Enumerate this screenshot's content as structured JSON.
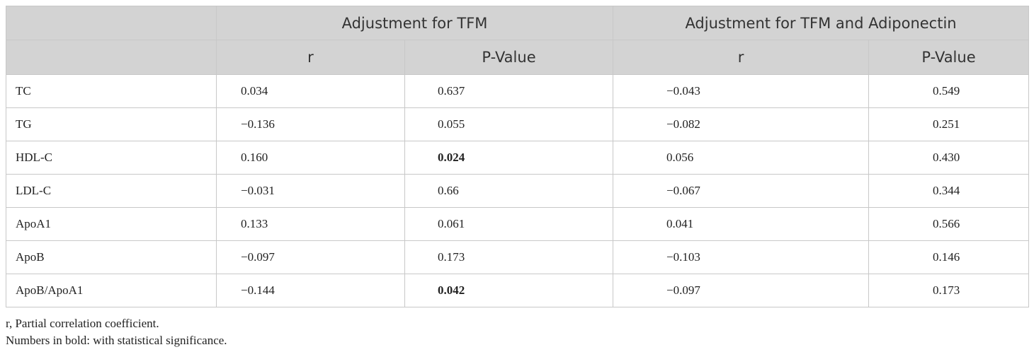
{
  "table": {
    "group_headers": [
      "Adjustment for TFM",
      "Adjustment for TFM and Adiponectin"
    ],
    "sub_headers": [
      "r",
      "P-Value",
      "r",
      "P-Value"
    ],
    "rows": [
      {
        "label": "TC",
        "r1": "0.034",
        "p1": "0.637",
        "r2": "−0.043",
        "p2": "0.549",
        "p1_bold": false
      },
      {
        "label": "TG",
        "r1": "−0.136",
        "p1": "0.055",
        "r2": "−0.082",
        "p2": "0.251",
        "p1_bold": false
      },
      {
        "label": "HDL-C",
        "r1": "0.160",
        "p1": "0.024",
        "r2": "0.056",
        "p2": "0.430",
        "p1_bold": true
      },
      {
        "label": "LDL-C",
        "r1": "−0.031",
        "p1": "0.66",
        "r2": "−0.067",
        "p2": "0.344",
        "p1_bold": false
      },
      {
        "label": "ApoA1",
        "r1": "0.133",
        "p1": "0.061",
        "r2": "0.041",
        "p2": "0.566",
        "p1_bold": false
      },
      {
        "label": "ApoB",
        "r1": "−0.097",
        "p1": "0.173",
        "r2": "−0.103",
        "p2": "0.146",
        "p1_bold": false
      },
      {
        "label": "ApoB/ApoA1",
        "r1": "−0.144",
        "p1": "0.042",
        "r2": "−0.097",
        "p2": "0.173",
        "p1_bold": true
      }
    ]
  },
  "notes": [
    "r, Partial correlation coefficient.",
    "Numbers in bold: with  statistical significance."
  ]
}
